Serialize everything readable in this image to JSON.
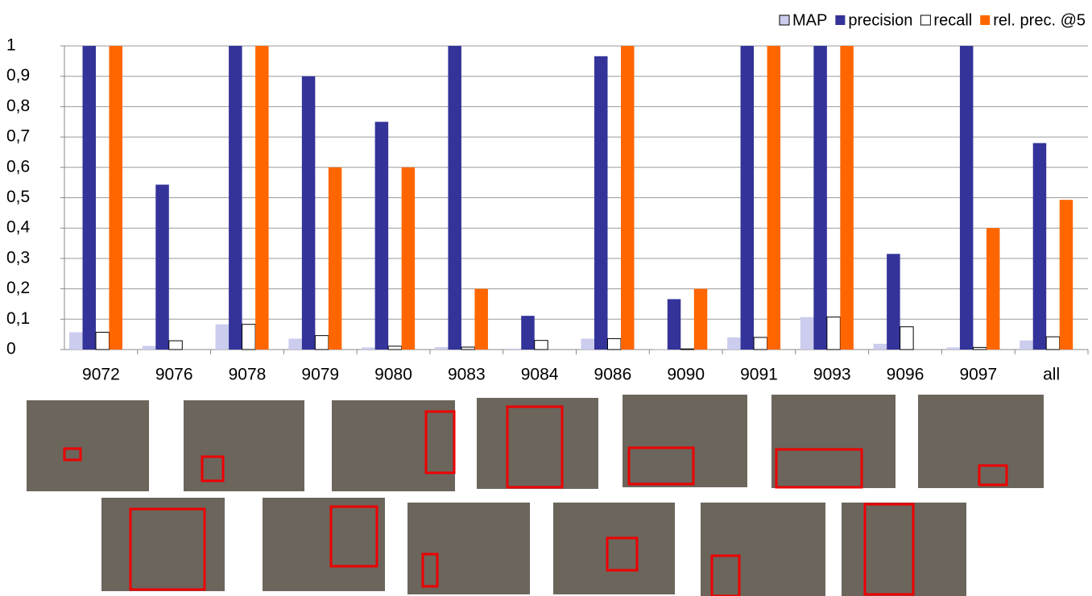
{
  "chart_data": {
    "type": "bar",
    "categories": [
      "9072",
      "9076",
      "9078",
      "9079",
      "9080",
      "9083",
      "9084",
      "9086",
      "9090",
      "9091",
      "9093",
      "9096",
      "9097",
      "all"
    ],
    "series": [
      {
        "name": "MAP",
        "color": "#ccccee",
        "values": [
          0.057,
          0.012,
          0.083,
          0.036,
          0.007,
          0.008,
          0.003,
          0.036,
          0.001,
          0.04,
          0.107,
          0.019,
          0.007,
          0.03
        ]
      },
      {
        "name": "precision",
        "color": "#333399",
        "values": [
          1,
          0.543,
          1,
          0.9,
          0.75,
          1,
          0.111,
          0.966,
          0.166,
          1,
          1,
          0.315,
          1,
          0.68
        ]
      },
      {
        "name": "recall",
        "color": "#ffffff",
        "values": [
          0.057,
          0.029,
          0.083,
          0.046,
          0.011,
          0.008,
          0.03,
          0.036,
          0.002,
          0.04,
          0.107,
          0.075,
          0.007,
          0.042
        ]
      },
      {
        "name": "rel. prec. @5",
        "color": "#ff6600",
        "values": [
          1,
          0,
          1,
          0.6,
          0.6,
          0.2,
          0,
          1,
          0.2,
          1,
          1,
          0,
          0.4,
          0.493
        ]
      }
    ],
    "ylim": [
      0,
      1
    ],
    "yticks": [
      0,
      {
        "value": 0.1,
        "label": "0,1"
      },
      {
        "value": 0.2,
        "label": "0,2"
      },
      {
        "value": 0.3,
        "label": "0,3"
      },
      {
        "value": 0.4,
        "label": "0,4"
      },
      {
        "value": 0.5,
        "label": "0,5"
      },
      {
        "value": 0.6,
        "label": "0,6"
      },
      {
        "value": 0.7,
        "label": "0,7"
      },
      {
        "value": 0.8,
        "label": "0,8"
      },
      {
        "value": 0.9,
        "label": "0,9"
      },
      1
    ],
    "grid": true,
    "legend": "top-right"
  }
}
